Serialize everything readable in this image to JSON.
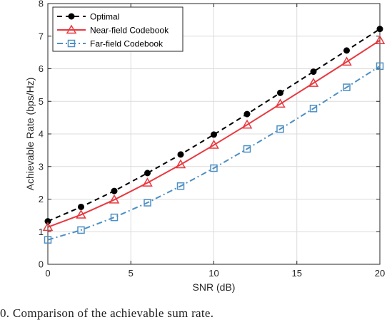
{
  "caption": "0.   Comparison of the achievable sum rate.",
  "chart_data": {
    "type": "line",
    "xlabel": "SNR (dB)",
    "ylabel": "Achievable Rate (bps/Hz)",
    "xlim": [
      0,
      20
    ],
    "ylim": [
      0,
      8
    ],
    "xticks": [
      0,
      5,
      10,
      15,
      20
    ],
    "yticks": [
      0,
      1,
      2,
      3,
      4,
      5,
      6,
      7,
      8
    ],
    "grid": true,
    "legend_position": "top-left",
    "x": [
      0,
      2,
      4,
      6,
      8,
      10,
      12,
      14,
      16,
      18,
      20
    ],
    "series": [
      {
        "name": "Optimal",
        "color": "#000000",
        "marker": "filled-circle",
        "linestyle": "dashed",
        "values": [
          1.32,
          1.76,
          2.25,
          2.8,
          3.37,
          3.98,
          4.61,
          5.26,
          5.91,
          6.56,
          7.22
        ]
      },
      {
        "name": "Near-field Codebook",
        "color": "#e8393f",
        "marker": "triangle",
        "linestyle": "solid",
        "values": [
          1.14,
          1.52,
          1.98,
          2.5,
          3.06,
          3.66,
          4.28,
          4.92,
          5.56,
          6.21,
          6.87
        ]
      },
      {
        "name": "Far-field Codebook",
        "color": "#4d8fc4",
        "marker": "square",
        "linestyle": "dashdot",
        "values": [
          0.75,
          1.05,
          1.44,
          1.89,
          2.4,
          2.95,
          3.54,
          4.15,
          4.78,
          5.43,
          6.08
        ]
      }
    ]
  }
}
